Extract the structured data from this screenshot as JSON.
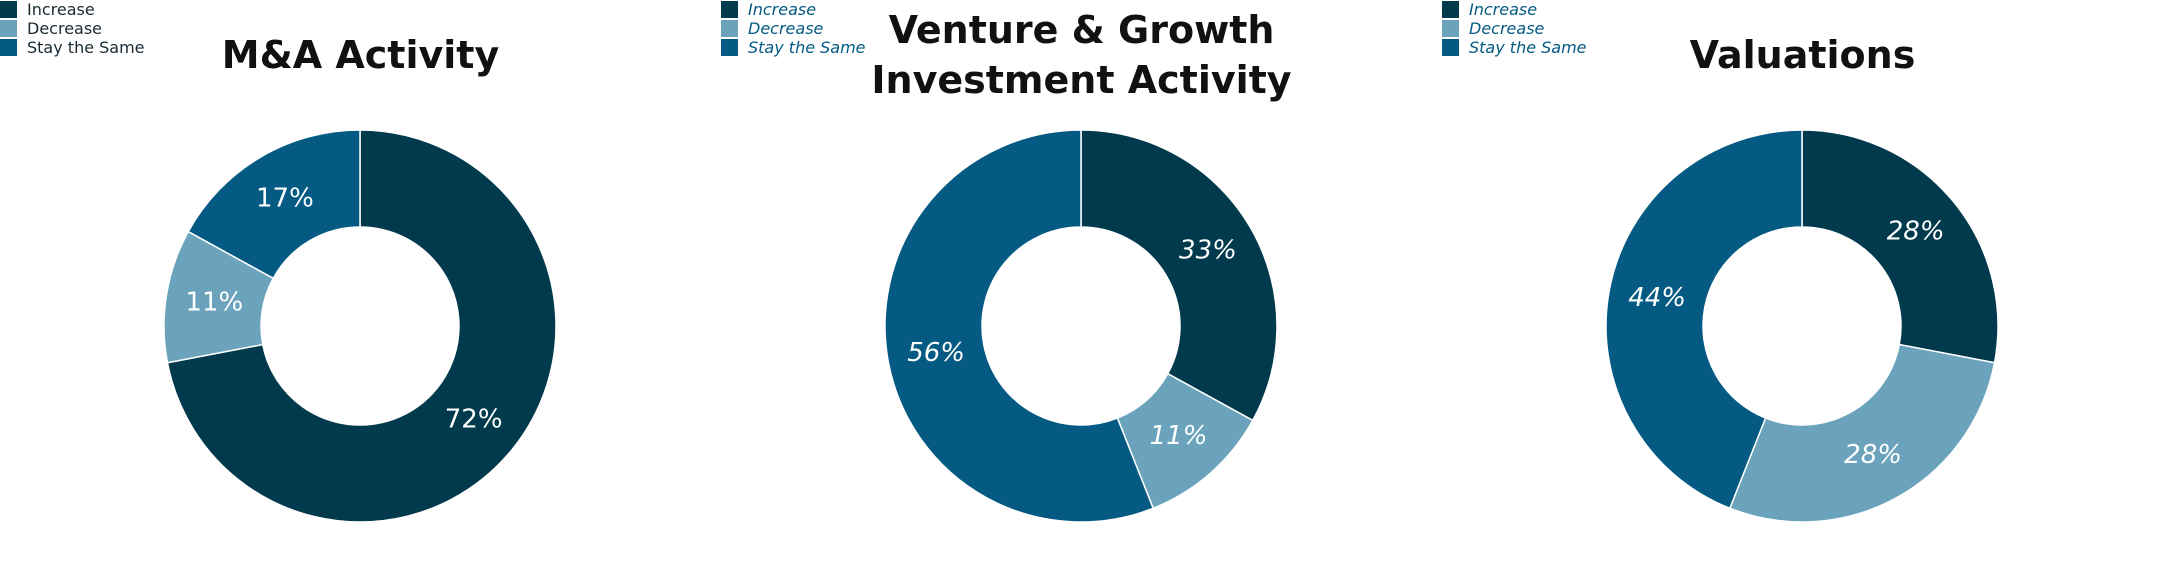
{
  "chart_data": [
    {
      "type": "donut",
      "title": "M&A Activity",
      "categories": [
        "Increase",
        "Decrease",
        "Stay the Same"
      ],
      "values": [
        72,
        11,
        17
      ],
      "value_labels": [
        "72%",
        "11%",
        "17%"
      ],
      "colors": [
        "#023a4d",
        "#6aa3bb",
        "#045a82"
      ],
      "label_style": "normal"
    },
    {
      "type": "donut",
      "title": "Venture & Growth Investment Activity",
      "categories": [
        "Increase",
        "Decrease",
        "Stay the Same"
      ],
      "values": [
        33,
        11,
        56
      ],
      "value_labels": [
        "33%",
        "11%",
        "56%"
      ],
      "colors": [
        "#023a4d",
        "#6aa3bb",
        "#045a82"
      ],
      "label_style": "italic"
    },
    {
      "type": "donut",
      "title": "Valuations",
      "categories": [
        "Increase",
        "Decrease",
        "Stay the Same"
      ],
      "values": [
        28,
        28,
        44
      ],
      "value_labels": [
        "28%",
        "28%",
        "44%"
      ],
      "colors": [
        "#023a4d",
        "#6aa3bb",
        "#045a82"
      ],
      "label_style": "italic"
    }
  ]
}
